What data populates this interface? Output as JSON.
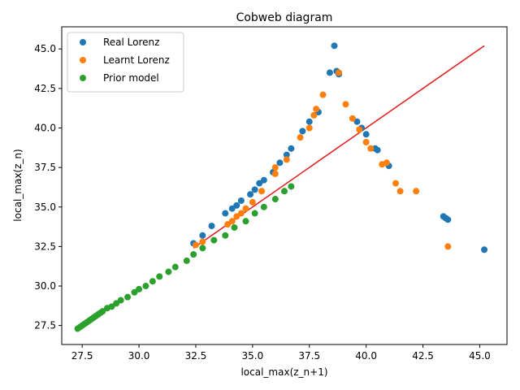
{
  "chart_data": {
    "type": "scatter",
    "title": "Cobweb diagram",
    "xlabel": "local_max(z_n+1)",
    "ylabel": "local_max(z_n)",
    "xlim": [
      26.6,
      46.2
    ],
    "ylim": [
      26.3,
      46.4
    ],
    "xticks": [
      "27.5",
      "30.0",
      "32.5",
      "35.0",
      "37.5",
      "40.0",
      "42.5",
      "45.0"
    ],
    "xtick_values": [
      27.5,
      30.0,
      32.5,
      35.0,
      37.5,
      40.0,
      42.5,
      45.0
    ],
    "yticks": [
      "27.5",
      "30.0",
      "32.5",
      "35.0",
      "37.5",
      "40.0",
      "42.5",
      "45.0"
    ],
    "ytick_values": [
      27.5,
      30.0,
      32.5,
      35.0,
      37.5,
      40.0,
      42.5,
      45.0
    ],
    "grid": false,
    "legend_position": "top-left",
    "identity_line": {
      "color": "#e31a1c",
      "x": [
        32.4,
        45.2
      ],
      "y": [
        32.4,
        45.2
      ]
    },
    "series": [
      {
        "name": "Real Lorenz",
        "color": "#1f77b4",
        "points": [
          [
            32.4,
            32.7
          ],
          [
            32.8,
            33.2
          ],
          [
            33.2,
            33.8
          ],
          [
            33.8,
            34.6
          ],
          [
            34.1,
            34.9
          ],
          [
            34.3,
            35.1
          ],
          [
            34.5,
            35.4
          ],
          [
            34.9,
            35.8
          ],
          [
            35.1,
            36.1
          ],
          [
            35.3,
            36.5
          ],
          [
            35.5,
            36.7
          ],
          [
            35.9,
            37.2
          ],
          [
            36.2,
            37.8
          ],
          [
            36.5,
            38.3
          ],
          [
            36.7,
            38.7
          ],
          [
            37.2,
            39.8
          ],
          [
            37.5,
            40.4
          ],
          [
            37.9,
            41.0
          ],
          [
            38.4,
            43.5
          ],
          [
            38.6,
            45.2
          ],
          [
            38.7,
            43.6
          ],
          [
            38.8,
            43.4
          ],
          [
            39.6,
            40.4
          ],
          [
            39.8,
            40.0
          ],
          [
            40.0,
            39.6
          ],
          [
            40.4,
            38.7
          ],
          [
            40.5,
            38.6
          ],
          [
            41.0,
            37.6
          ],
          [
            43.4,
            34.4
          ],
          [
            43.5,
            34.3
          ],
          [
            43.6,
            34.2
          ],
          [
            45.2,
            32.3
          ]
        ]
      },
      {
        "name": "Learnt Lorenz",
        "color": "#ff7f0e",
        "points": [
          [
            32.5,
            32.6
          ],
          [
            32.8,
            32.8
          ],
          [
            33.9,
            33.9
          ],
          [
            34.1,
            34.1
          ],
          [
            34.3,
            34.4
          ],
          [
            34.5,
            34.6
          ],
          [
            34.7,
            34.9
          ],
          [
            35.0,
            35.3
          ],
          [
            35.4,
            36.0
          ],
          [
            36.0,
            37.1
          ],
          [
            36.0,
            37.5
          ],
          [
            36.5,
            38.0
          ],
          [
            37.1,
            39.4
          ],
          [
            37.5,
            40.0
          ],
          [
            37.7,
            40.8
          ],
          [
            37.8,
            41.2
          ],
          [
            38.1,
            42.1
          ],
          [
            38.8,
            43.5
          ],
          [
            39.1,
            41.5
          ],
          [
            39.4,
            40.6
          ],
          [
            39.7,
            39.9
          ],
          [
            40.0,
            39.1
          ],
          [
            40.2,
            38.7
          ],
          [
            40.7,
            37.7
          ],
          [
            40.9,
            37.8
          ],
          [
            41.3,
            36.5
          ],
          [
            41.5,
            36.0
          ],
          [
            42.2,
            36.0
          ],
          [
            43.6,
            32.5
          ]
        ]
      },
      {
        "name": "Prior model",
        "color": "#2ca02c",
        "points": [
          [
            27.3,
            27.3
          ],
          [
            27.4,
            27.4
          ],
          [
            27.5,
            27.5
          ],
          [
            27.6,
            27.6
          ],
          [
            27.7,
            27.7
          ],
          [
            27.8,
            27.8
          ],
          [
            27.9,
            27.9
          ],
          [
            28.0,
            28.0
          ],
          [
            28.1,
            28.1
          ],
          [
            28.2,
            28.2
          ],
          [
            28.3,
            28.3
          ],
          [
            28.4,
            28.4
          ],
          [
            28.6,
            28.6
          ],
          [
            28.8,
            28.7
          ],
          [
            29.0,
            28.9
          ],
          [
            29.2,
            29.1
          ],
          [
            29.5,
            29.3
          ],
          [
            29.8,
            29.6
          ],
          [
            30.0,
            29.8
          ],
          [
            30.3,
            30.0
          ],
          [
            30.6,
            30.3
          ],
          [
            30.9,
            30.6
          ],
          [
            31.3,
            30.9
          ],
          [
            31.6,
            31.2
          ],
          [
            32.1,
            31.6
          ],
          [
            32.4,
            32.0
          ],
          [
            32.8,
            32.4
          ],
          [
            33.3,
            32.9
          ],
          [
            33.8,
            33.2
          ],
          [
            34.2,
            33.7
          ],
          [
            34.7,
            34.1
          ],
          [
            35.1,
            34.6
          ],
          [
            35.5,
            35.0
          ],
          [
            36.0,
            35.5
          ],
          [
            36.4,
            36.0
          ],
          [
            36.7,
            36.3
          ]
        ]
      }
    ]
  }
}
